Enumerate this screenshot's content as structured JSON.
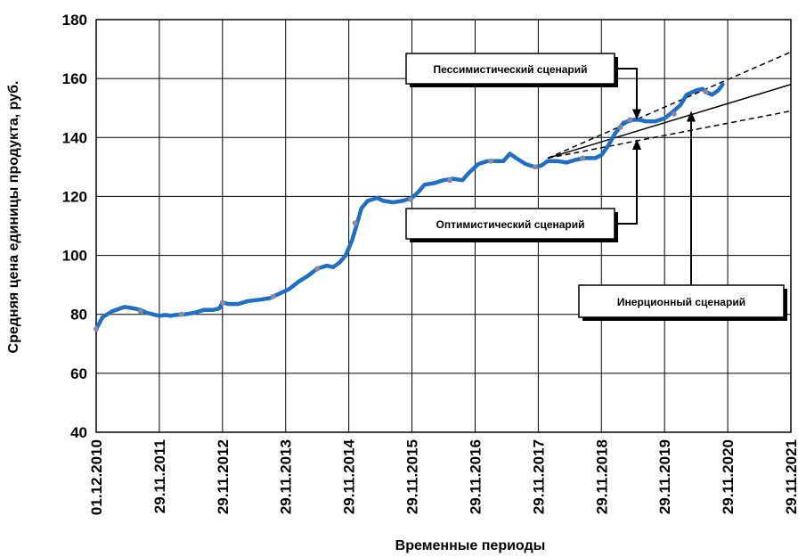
{
  "chart_data": {
    "type": "line",
    "xlabel": "Временные периоды",
    "ylabel": "Средняя цена единицы продукта, руб.",
    "ylim": [
      40,
      180
    ],
    "yticks": [
      40,
      60,
      80,
      100,
      120,
      140,
      160,
      180
    ],
    "xticks": [
      "01.12.2010",
      "29.11.2011",
      "29.11.2012",
      "29.11.2013",
      "29.11.2014",
      "29.11.2015",
      "29.11.2016",
      "29.11.2017",
      "29.11.2018",
      "29.11.2019",
      "29.11.2020",
      "29.11.2021"
    ],
    "x_unit": "years since 01.12.2010",
    "grid": true,
    "legend": "none",
    "colors": {
      "series": "#1f6fc6",
      "markers": "#8a8a9e",
      "scenario": "#000000"
    },
    "series": [
      {
        "values": [
          [
            0.0,
            75
          ],
          [
            0.1,
            79
          ],
          [
            0.25,
            81
          ],
          [
            0.45,
            82.5
          ],
          [
            0.6,
            82
          ],
          [
            0.7,
            81.5
          ],
          [
            0.8,
            80.5
          ],
          [
            0.9,
            80
          ],
          [
            1.0,
            79.5
          ],
          [
            1.1,
            79.8
          ],
          [
            1.18,
            79.5
          ],
          [
            1.25,
            79.8
          ],
          [
            1.4,
            80
          ],
          [
            1.55,
            80.5
          ],
          [
            1.7,
            81.5
          ],
          [
            1.85,
            81.5
          ],
          [
            1.95,
            82
          ],
          [
            2.0,
            84
          ],
          [
            2.1,
            83.5
          ],
          [
            2.25,
            83.5
          ],
          [
            2.4,
            84.5
          ],
          [
            2.6,
            85
          ],
          [
            2.75,
            85.5
          ],
          [
            2.9,
            87
          ],
          [
            3.05,
            88.5
          ],
          [
            3.2,
            91
          ],
          [
            3.35,
            93
          ],
          [
            3.5,
            95.5
          ],
          [
            3.65,
            96.5
          ],
          [
            3.75,
            96
          ],
          [
            3.85,
            97.5
          ],
          [
            3.95,
            100
          ],
          [
            4.05,
            105
          ],
          [
            4.12,
            110
          ],
          [
            4.2,
            116
          ],
          [
            4.3,
            118.5
          ],
          [
            4.45,
            119.5
          ],
          [
            4.55,
            118.5
          ],
          [
            4.7,
            118
          ],
          [
            4.85,
            118.5
          ],
          [
            5.0,
            119.5
          ],
          [
            5.1,
            121.5
          ],
          [
            5.2,
            124
          ],
          [
            5.35,
            124.5
          ],
          [
            5.5,
            125.5
          ],
          [
            5.65,
            126
          ],
          [
            5.8,
            125.5
          ],
          [
            5.9,
            128
          ],
          [
            6.05,
            131
          ],
          [
            6.2,
            132
          ],
          [
            6.35,
            132
          ],
          [
            6.45,
            132
          ],
          [
            6.55,
            134.5
          ],
          [
            6.65,
            133
          ],
          [
            6.8,
            131
          ],
          [
            6.95,
            130
          ],
          [
            7.05,
            130.5
          ],
          [
            7.15,
            132
          ],
          [
            7.3,
            132
          ],
          [
            7.45,
            131.5
          ],
          [
            7.6,
            132.5
          ],
          [
            7.75,
            133
          ],
          [
            7.9,
            133
          ],
          [
            8.0,
            134
          ],
          [
            8.1,
            137
          ],
          [
            8.22,
            141.5
          ],
          [
            8.35,
            145
          ],
          [
            8.5,
            146
          ],
          [
            8.6,
            146
          ],
          [
            8.7,
            145.5
          ],
          [
            8.85,
            145.5
          ],
          [
            9.0,
            146.5
          ],
          [
            9.12,
            148.5
          ],
          [
            9.25,
            151
          ],
          [
            9.35,
            154.5
          ],
          [
            9.5,
            156
          ],
          [
            9.6,
            156.5
          ],
          [
            9.7,
            155
          ],
          [
            9.75,
            154.5
          ],
          [
            9.85,
            156
          ],
          [
            9.92,
            158
          ]
        ],
        "markers": [
          [
            0.0,
            75
          ],
          [
            0.7,
            81
          ],
          [
            1.35,
            80
          ],
          [
            2.0,
            84
          ],
          [
            2.8,
            86
          ],
          [
            3.5,
            95.5
          ],
          [
            4.1,
            111
          ],
          [
            4.98,
            119
          ],
          [
            5.6,
            125.5
          ],
          [
            6.25,
            132
          ],
          [
            6.95,
            130
          ],
          [
            7.7,
            133
          ],
          [
            8.3,
            143.5
          ],
          [
            8.45,
            146
          ],
          [
            9.15,
            148
          ],
          [
            9.65,
            155.5
          ]
        ]
      }
    ],
    "scenarios": [
      {
        "style": "solid",
        "from": [
          7.15,
          133
        ],
        "to": [
          11.0,
          158
        ]
      },
      {
        "style": "dashed",
        "from": [
          7.15,
          133
        ],
        "to": [
          11.0,
          169
        ]
      },
      {
        "style": "dashed",
        "from": [
          7.15,
          133
        ],
        "to": [
          11.0,
          149
        ]
      }
    ],
    "annotations": [
      {
        "text": "Пессимистический сценарий",
        "points_to": [
          8.55,
          146
        ]
      },
      {
        "text": "Оптимистический сценарий",
        "points_to": [
          8.55,
          139.5
        ]
      },
      {
        "text": "Инерционный сценарий",
        "points_to": [
          9.6,
          149
        ]
      }
    ]
  }
}
